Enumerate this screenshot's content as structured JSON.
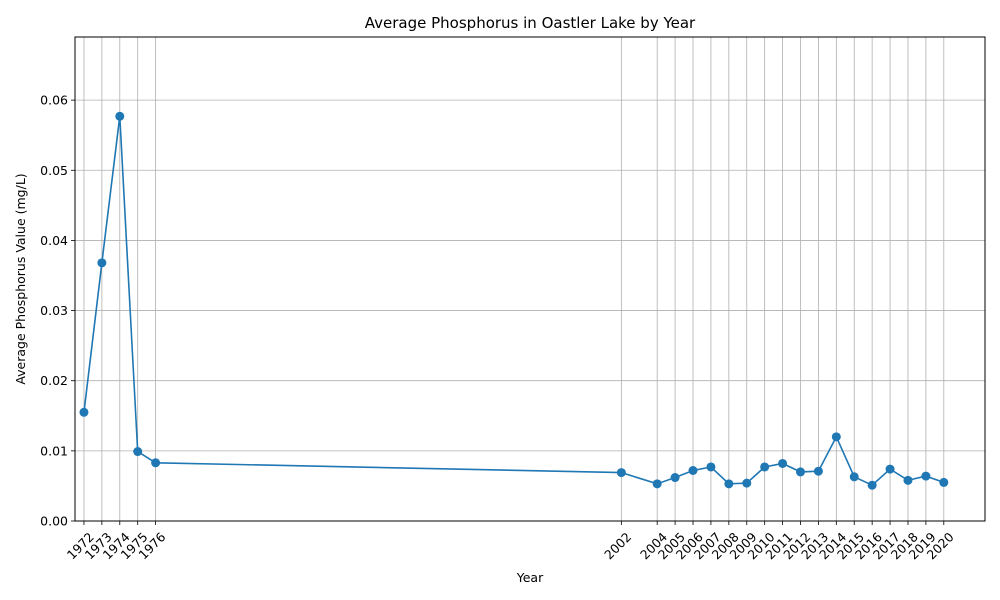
{
  "chart_data": {
    "type": "line",
    "title": "Average Phosphorus in Oastler Lake by Year",
    "xlabel": "Year",
    "ylabel": "Average Phosphorus Value (mg/L)",
    "x": [
      1972,
      1973,
      1974,
      1975,
      1976,
      2002,
      2004,
      2005,
      2006,
      2007,
      2008,
      2009,
      2010,
      2011,
      2012,
      2013,
      2014,
      2015,
      2016,
      2017,
      2018,
      2019,
      2020
    ],
    "y": [
      0.0155,
      0.0368,
      0.0577,
      0.0099,
      0.0083,
      0.0069,
      0.0053,
      0.0062,
      0.0072,
      0.0077,
      0.0053,
      0.0054,
      0.0077,
      0.0082,
      0.007,
      0.0071,
      0.012,
      0.0063,
      0.0051,
      0.0074,
      0.0058,
      0.0064,
      0.0055
    ],
    "xticks": [
      "1972",
      "1973",
      "1974",
      "1975",
      "1976",
      "2002",
      "2004",
      "2005",
      "2006",
      "2007",
      "2008",
      "2009",
      "2010",
      "2011",
      "2012",
      "2013",
      "2014",
      "2015",
      "2016",
      "2017",
      "2018",
      "2019",
      "2020"
    ],
    "yticks": [
      "0.00",
      "0.01",
      "0.02",
      "0.03",
      "0.04",
      "0.05",
      "0.06"
    ],
    "ylim": [
      0,
      0.069
    ],
    "xlim": [
      1971.5,
      2022.3
    ],
    "grid": true,
    "marker": "circle",
    "color": "#1f77b4"
  }
}
